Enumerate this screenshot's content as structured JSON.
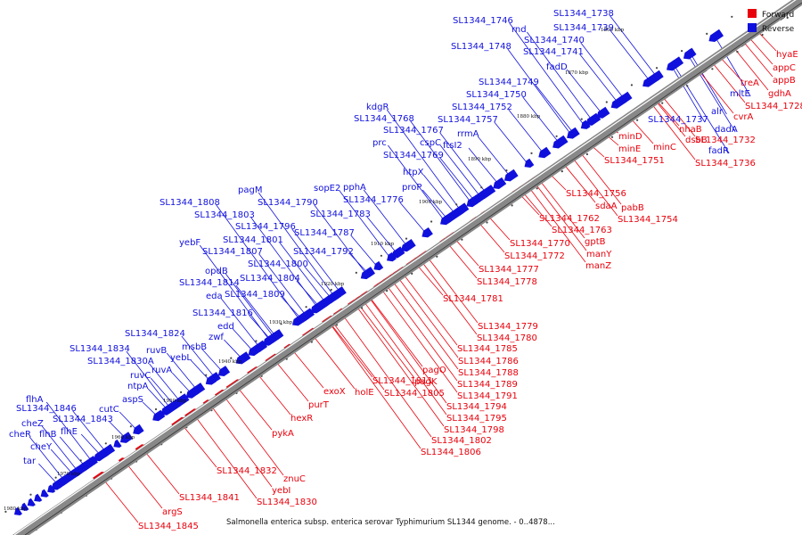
{
  "caption": "Salmonella enterica subsp. enterica serovar Typhimurium SL1344 genome. - 0..4878...",
  "legend": [
    {
      "label": "Forward",
      "color": "#e8000b"
    },
    {
      "label": "Reverse",
      "color": "#1010dd"
    }
  ],
  "colors": {
    "forward": "#e8000b",
    "reverse": "#1010dd",
    "backbone": "#888888",
    "small_mark": "#000000"
  },
  "ticks": [
    "1860 kbp",
    "1870 kbp",
    "1880 kbp",
    "1890 kbp",
    "1900 kbp",
    "1910 kbp",
    "1920 kbp",
    "1930 kbp",
    "1940 kbp",
    "1950 kbp",
    "1960 kbp",
    "1970 kbp",
    "1980 kbp"
  ],
  "reverse_genes": [
    "SL1344_1746",
    "rnd",
    "SL1344_1738",
    "SL1344_1739",
    "SL1344_1740",
    "SL1344_1748",
    "SL1344_1741",
    "fadD",
    "SL1344_1749",
    "SL1344_1750",
    "SL1344_1752",
    "SL1344_1757",
    "kdgR",
    "SL1344_1768",
    "SL1344_1767",
    "rrmA",
    "prc",
    "cspC",
    "ftsI2",
    "SL1344_1769",
    "htpX",
    "pagM",
    "sopE2",
    "pphA",
    "proP",
    "SL1344_1808",
    "SL1344_1790",
    "SL1344_1776",
    "SL1344_1803",
    "SL1344_1783",
    "SL1344_1796",
    "yebF",
    "SL1344_1801",
    "SL1344_1787",
    "SL1344_1807",
    "SL1344_1792",
    "opdB",
    "SL1344_1800",
    "SL1344_1814",
    "SL1344_1804",
    "eda",
    "SL1344_1809",
    "SL1344_1816",
    "edd",
    "SL1344_1824",
    "zwf",
    "msbB",
    "SL1344_1834",
    "ruvB",
    "yebL",
    "SL1344_1830A",
    "ruvA",
    "ruvC",
    "ntpA",
    "aspS",
    "flhA",
    "SL1344_1846",
    "SL1344_1843",
    "cheZ",
    "flhE",
    "cutC",
    "cheR",
    "flhB",
    "cheY",
    "tar",
    "SL1344_1737",
    "alr",
    "mltE",
    "dadA",
    "fadR"
  ],
  "forward_genes": [
    "hyaE",
    "appC",
    "appB",
    "treA",
    "gdhA",
    "SL1344_1728",
    "cvrA",
    "nhaB",
    "dsbB",
    "SL1344_1732",
    "minD",
    "minE",
    "minC",
    "SL1344_1736",
    "SL1344_1751",
    "SL1344_1756",
    "sdaA",
    "pabB",
    "SL1344_1754",
    "SL1344_1762",
    "SL1344_1763",
    "gptB",
    "SL1344_1770",
    "manY",
    "SL1344_1772",
    "manZ",
    "SL1344_1777",
    "SL1344_1778",
    "SL1344_1781",
    "SL1344_1779",
    "SL1344_1780",
    "SL1344_1785",
    "SL1344_1786",
    "pagO",
    "SL1344_1788",
    "SL1344_1811",
    "pagK",
    "SL1344_1789",
    "exoX",
    "holE",
    "SL1344_1805",
    "SL1344_1791",
    "purT",
    "SL1344_1794",
    "SL1344_1795",
    "hexR",
    "SL1344_1798",
    "pykA",
    "SL1344_1802",
    "SL1344_1806",
    "SL1344_1832",
    "znuC",
    "yebI",
    "SL1344_1830",
    "SL1344_1841",
    "argS",
    "SL1344_1845"
  ]
}
